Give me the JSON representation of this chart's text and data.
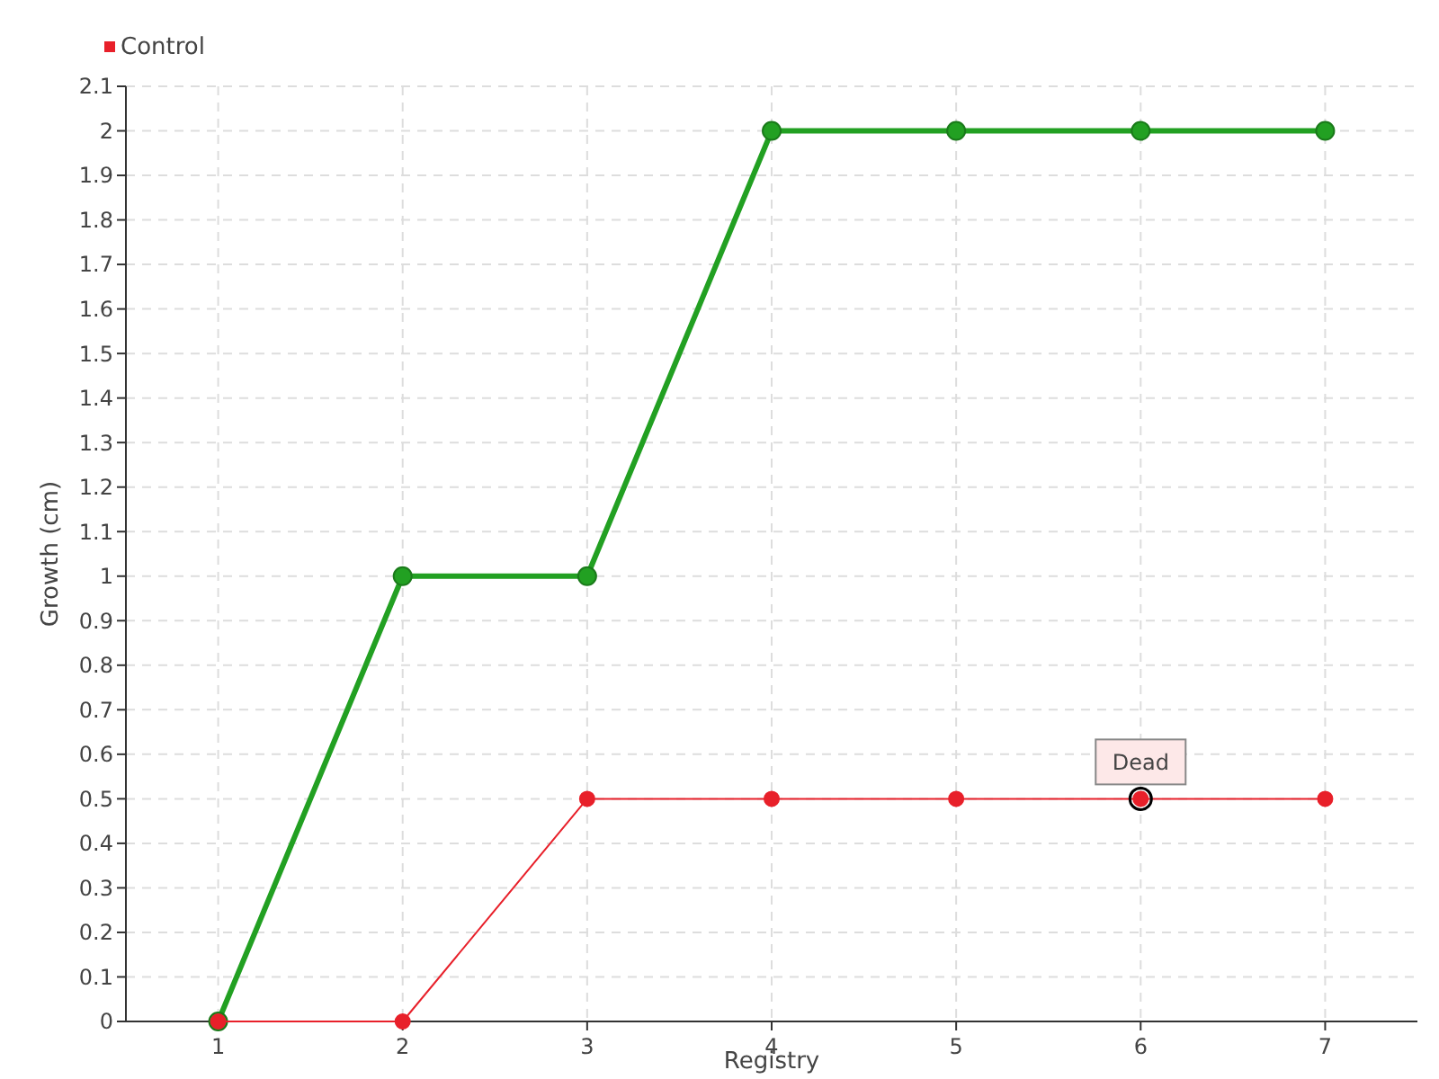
{
  "chart_data": {
    "type": "line",
    "xlabel": "Registry",
    "ylabel": "Growth (cm)",
    "categories": [
      "1",
      "2",
      "3",
      "4",
      "5",
      "6",
      "7"
    ],
    "series": [
      {
        "color": "#22a022",
        "values": [
          0,
          1,
          1,
          2,
          2,
          2,
          2
        ]
      },
      {
        "name": "Control",
        "color": "#e8202a",
        "values": [
          0,
          0,
          0.5,
          0.5,
          0.5,
          0.5,
          0.5
        ]
      }
    ],
    "ylim": [
      0,
      2.1
    ],
    "yticks": [
      0,
      0.1,
      0.2,
      0.3,
      0.4,
      0.5,
      0.6,
      0.7,
      0.8,
      0.9,
      1,
      1.1,
      1.2,
      1.3,
      1.4,
      1.5,
      1.6,
      1.7,
      1.8,
      1.9,
      2,
      2.1
    ],
    "annotations": [
      {
        "text": "Dead",
        "x": "6",
        "y": 0.5
      }
    ],
    "grid": true,
    "legend": "top left",
    "marker": "circle",
    "line_style": "solid"
  }
}
